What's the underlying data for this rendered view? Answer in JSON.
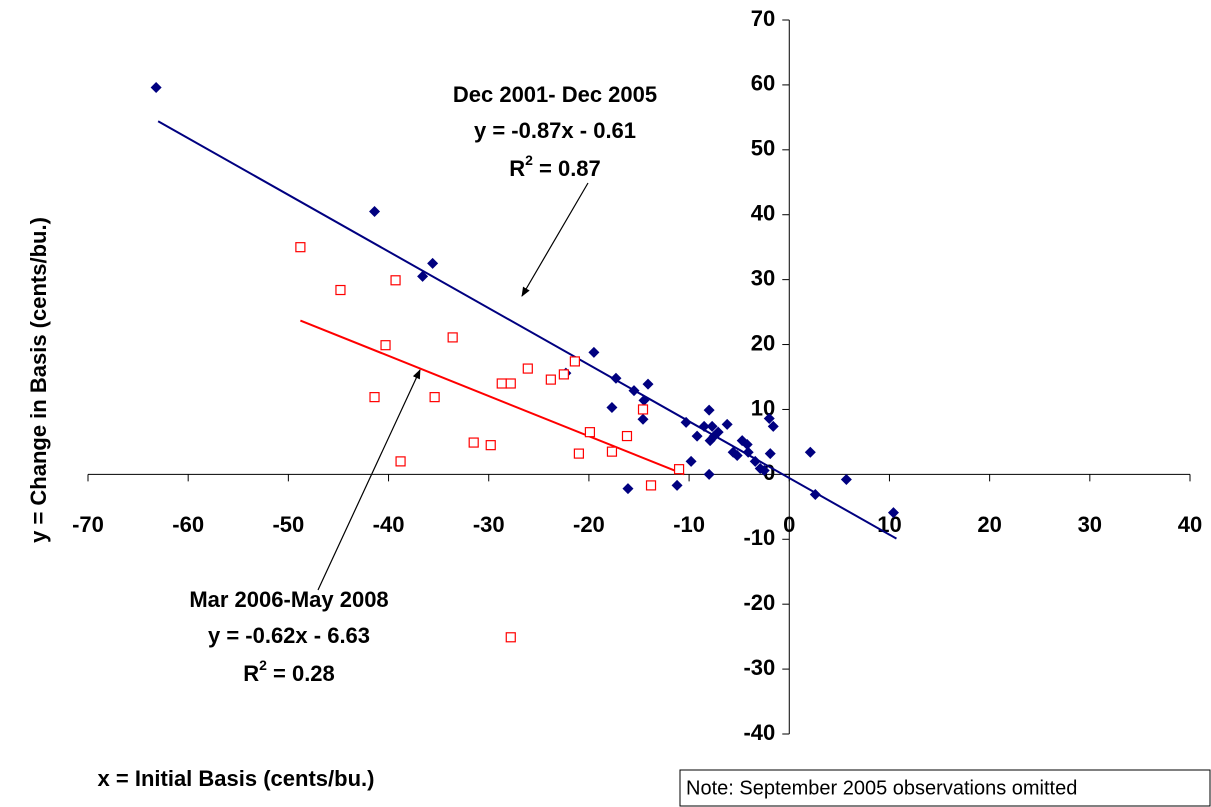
{
  "chart_data": {
    "type": "scatter",
    "xlabel": "x = Initial Basis (cents/bu.)",
    "ylabel": "y = Change in Basis (cents/bu.)",
    "xlim": [
      -70,
      40
    ],
    "ylim": [
      -40,
      70
    ],
    "xticks": [
      -70,
      -60,
      -50,
      -40,
      -30,
      -20,
      -10,
      0,
      10,
      20,
      30,
      40
    ],
    "yticks": [
      70,
      60,
      50,
      40,
      30,
      20,
      10,
      0,
      -10,
      -20,
      -30,
      -40
    ],
    "series": [
      {
        "color": "#000080",
        "marker": "diamond",
        "x": [
          -63.2,
          -41.4,
          -35.6,
          -36.6,
          -19.5,
          -22.3,
          -17.3,
          -15.5,
          -14.1,
          -14.5,
          -17.7,
          -14.6,
          -10.3,
          -9.2,
          -8.5,
          -8.0,
          -7.7,
          -7.5,
          -7.9,
          -7.1,
          -6.2,
          -4.7,
          -4.2,
          -5.6,
          -5.2,
          -4.1,
          -3.4,
          -2.9,
          -2.5,
          -1.9,
          -2.0,
          -1.6,
          -9.8,
          -8.0,
          -16.1,
          -11.2,
          2.1,
          2.6,
          5.7,
          10.4
        ],
        "y": [
          59.6,
          40.5,
          32.5,
          30.5,
          18.8,
          15.6,
          14.8,
          12.9,
          13.9,
          11.4,
          10.3,
          8.5,
          8.0,
          5.9,
          7.4,
          9.9,
          7.4,
          5.9,
          5.2,
          6.5,
          7.7,
          5.2,
          4.6,
          3.4,
          2.9,
          3.4,
          2.0,
          0.9,
          0.6,
          3.2,
          8.6,
          7.4,
          2.0,
          0,
          -2.2,
          -1.7,
          3.4,
          -3.1,
          -0.8,
          -5.9
        ],
        "trend": {
          "x": [
            -63,
            10.7
          ],
          "y": [
            54.4,
            -9.9
          ]
        }
      },
      {
        "color": "#ff0000",
        "marker": "square",
        "x": [
          -48.8,
          -44.8,
          -39.3,
          -33.6,
          -40.3,
          -41.4,
          -35.4,
          -38.8,
          -31.5,
          -29.8,
          -28.7,
          -27.8,
          -26.1,
          -23.8,
          -22.5,
          -21.4,
          -21.0,
          -19.9,
          -17.7,
          -16.2,
          -14.6,
          -13.8,
          -11.0,
          -27.8
        ],
        "y": [
          35.0,
          28.4,
          29.9,
          21.1,
          19.9,
          11.9,
          11.9,
          2.0,
          4.9,
          4.5,
          14.0,
          14.0,
          16.3,
          14.6,
          15.4,
          17.4,
          3.2,
          6.5,
          3.5,
          5.9,
          10.0,
          -1.7,
          0.8,
          -25.1
        ],
        "trend": {
          "x": [
            -48.8,
            -10.5
          ],
          "y": [
            23.7,
            0
          ]
        }
      }
    ],
    "annotations": [
      {
        "lines": [
          "Dec 2001- Dec 2005",
          "y = -0.87x - 0.61"
        ],
        "r2": [
          "R",
          "2",
          " = 0.87"
        ]
      },
      {
        "lines": [
          "Mar 2006-May 2008",
          "y = -0.62x - 6.63"
        ],
        "r2": [
          "R",
          "2",
          " = 0.28"
        ]
      }
    ],
    "note": "Note: September 2005 observations omitted"
  }
}
